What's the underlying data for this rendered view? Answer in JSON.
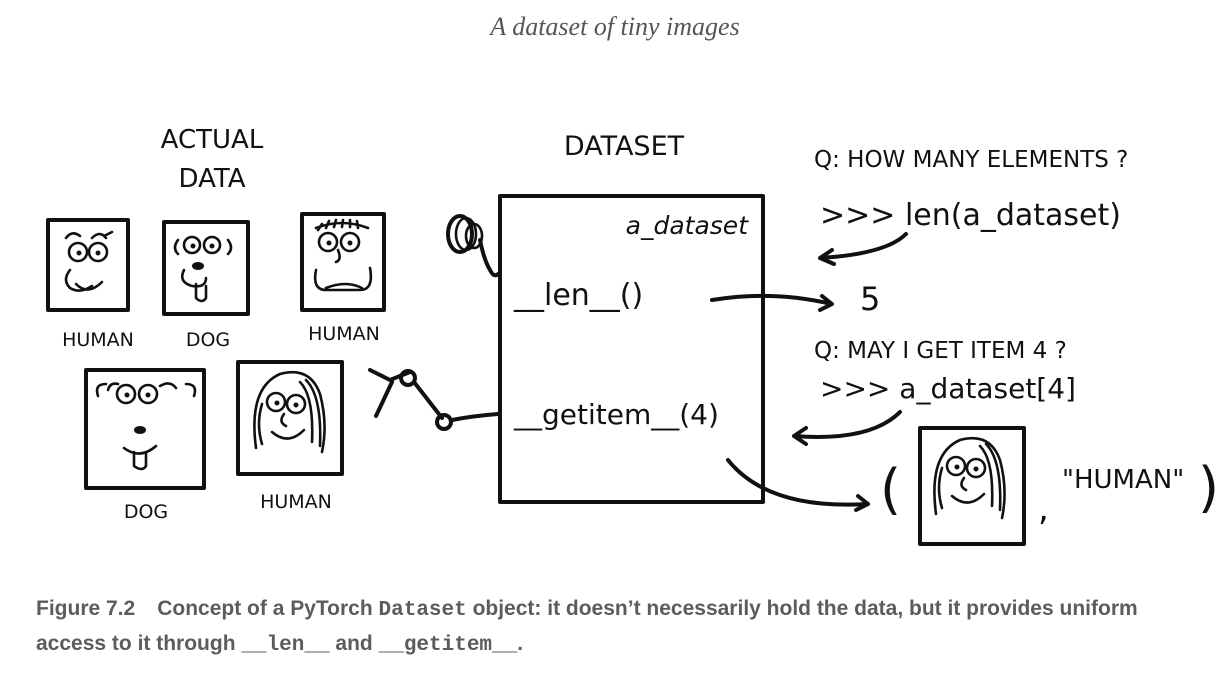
{
  "header": {
    "title": "A dataset of tiny images"
  },
  "drawing": {
    "actual_data_line1": "ACTUAL",
    "actual_data_line2": "DATA",
    "labels": {
      "human1": "HUMAN",
      "dog1": "DOG",
      "human2": "HUMAN",
      "dog2": "DOG",
      "human3": "HUMAN"
    },
    "dataset_title": "DATASET",
    "dataset_name": "a_dataset",
    "len_method": "__len__()",
    "getitem_method": "__getitem__(4)",
    "q1": "Q: HOW MANY ELEMENTS ?",
    "code1": ">>> len(a_dataset)",
    "result1": "5",
    "q2": "Q: MAY I GET ITEM 4 ?",
    "code2": ">>> a_dataset[4]",
    "tuple_open": "(",
    "tuple_comma": ",",
    "tuple_label": "\"HUMAN\"",
    "tuple_close": ")"
  },
  "caption": {
    "label": "Figure 7.2",
    "text_before": "Concept of a PyTorch ",
    "code_dataset": "Dataset",
    "text_middle": " object: it doesn’t necessarily hold the data, but it provides uniform access to it through ",
    "code_len": "__len__",
    "text_and": " and ",
    "code_getitem": "__getitem__",
    "text_end": "."
  }
}
